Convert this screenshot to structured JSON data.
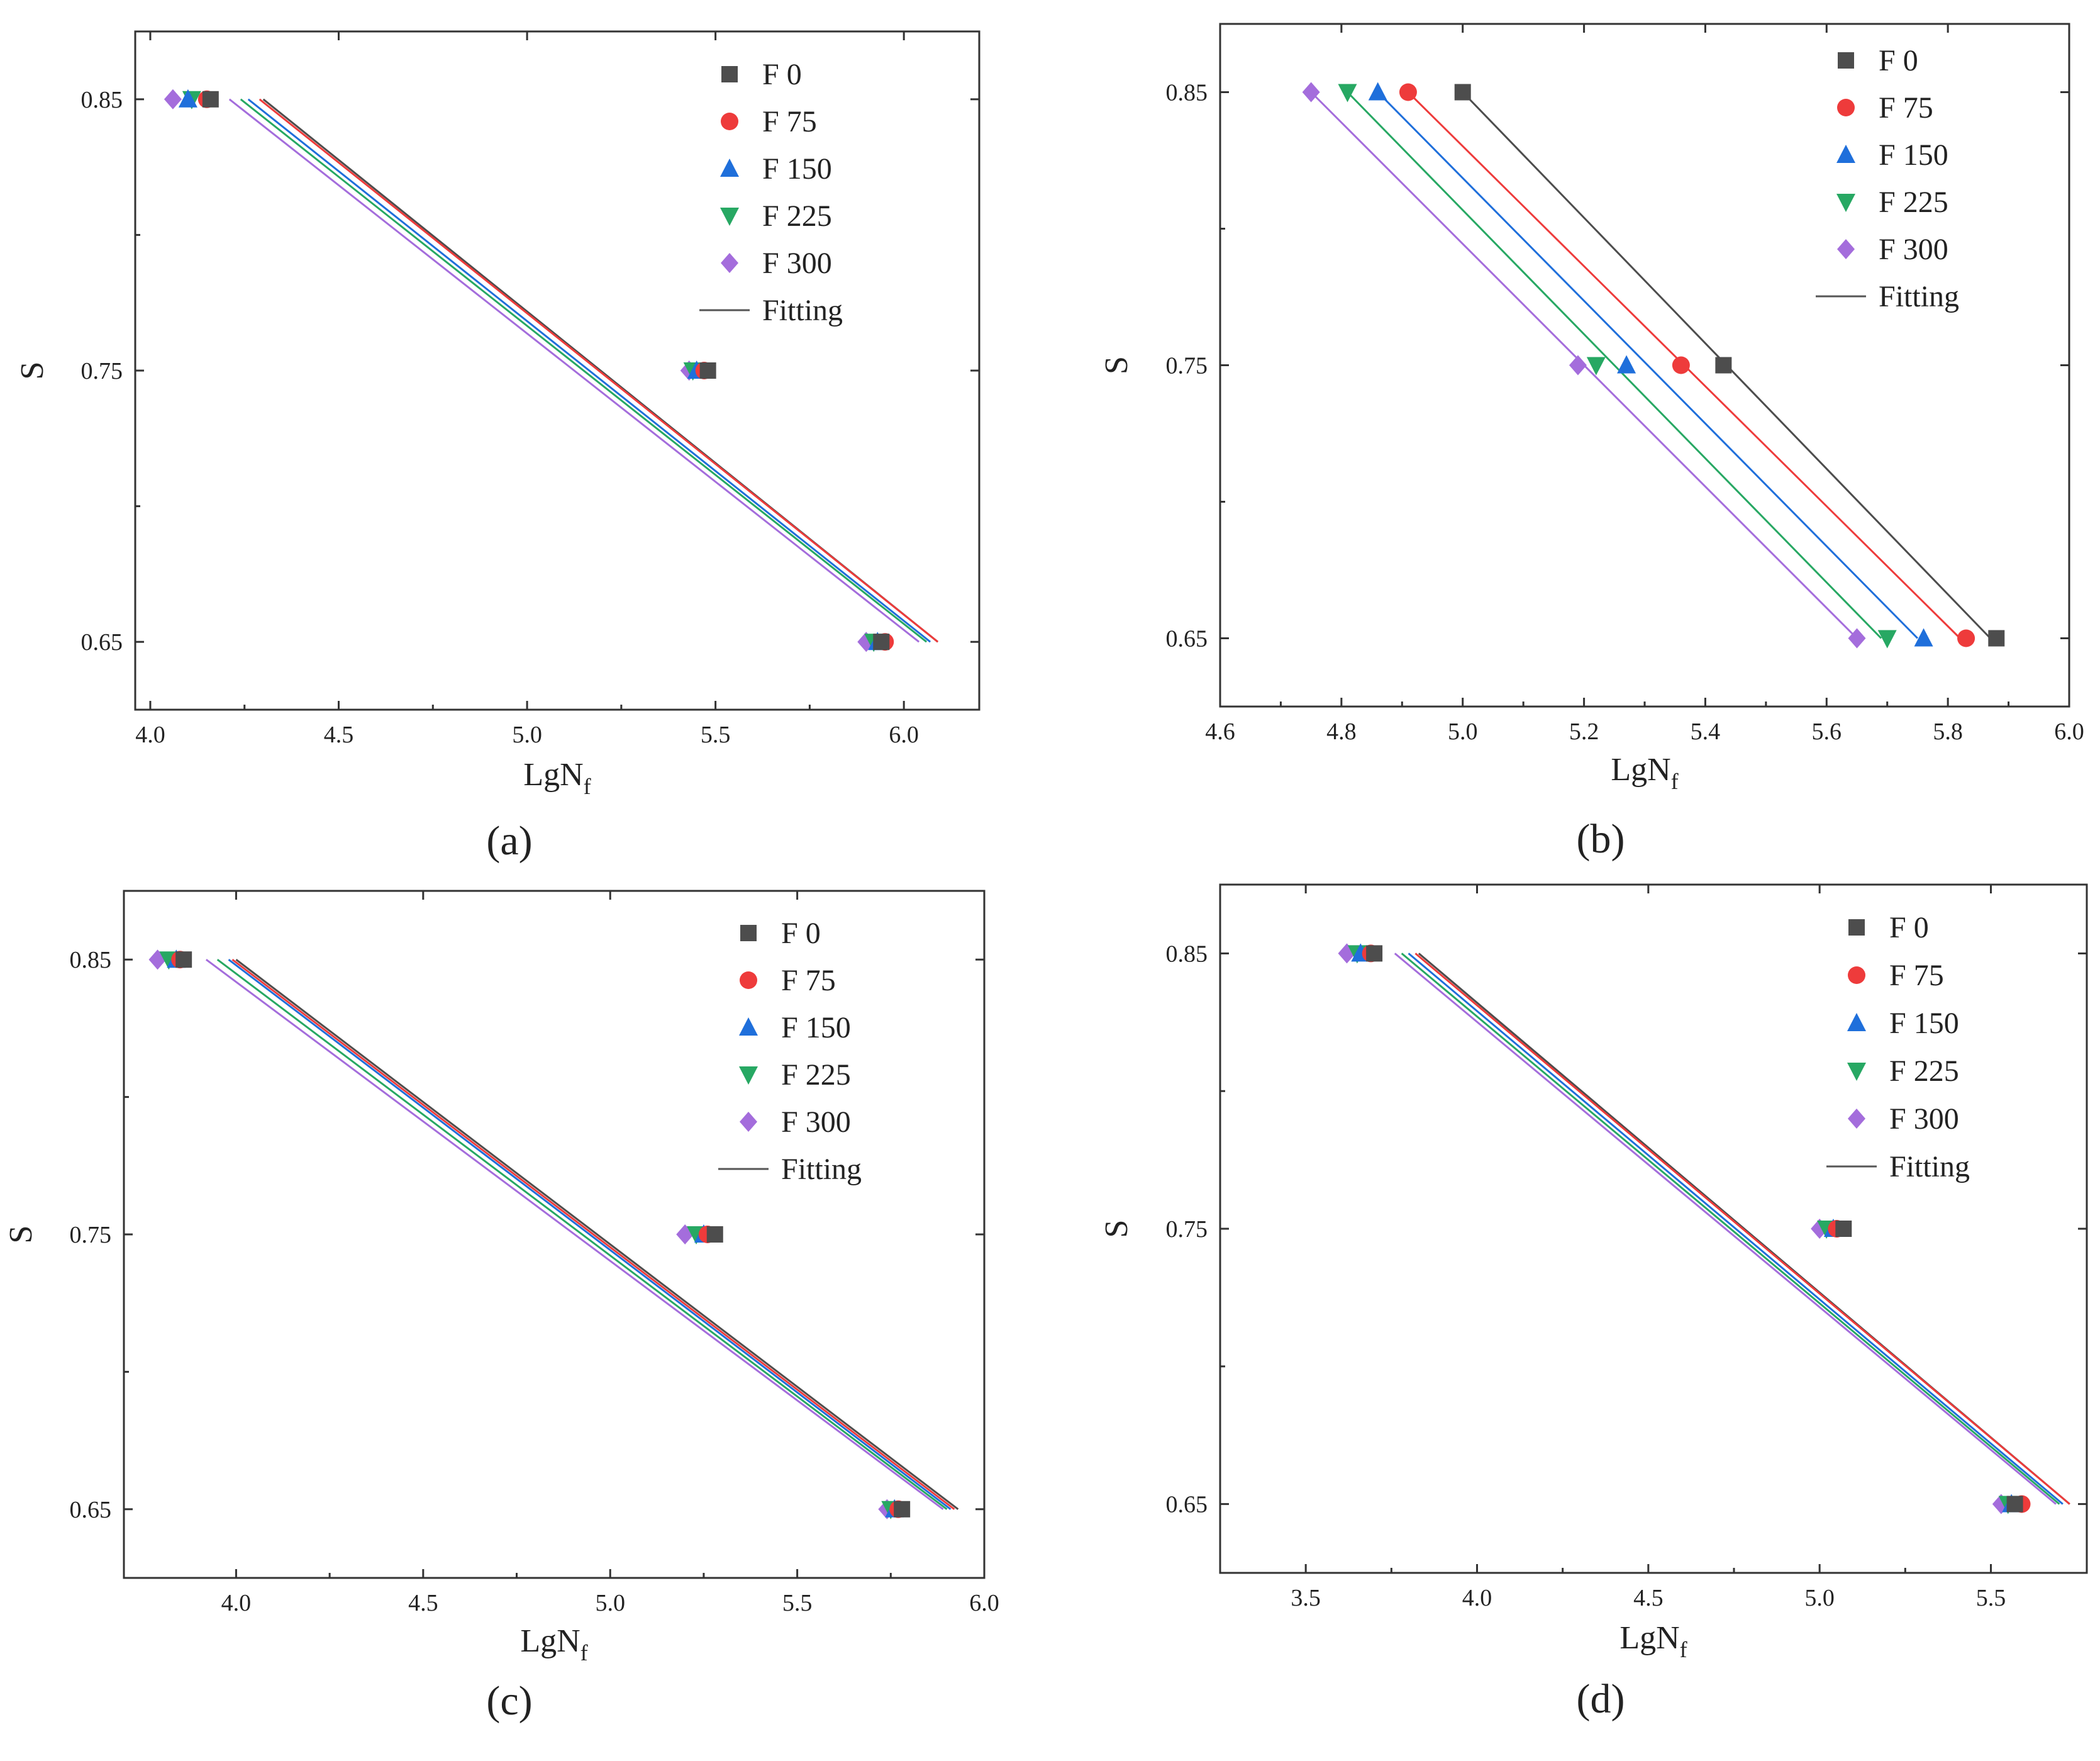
{
  "figure": {
    "colors": {
      "F 0": "#4d4d4d",
      "F 75": "#ee3b3b",
      "F 150": "#1f6fdb",
      "F 225": "#27a863",
      "F 300": "#a46ddc",
      "Fitting": "#555555"
    },
    "markers": {
      "F 0": "square",
      "F 75": "circle",
      "F 150": "triangle-up",
      "F 225": "triangle-down",
      "F 300": "diamond"
    }
  },
  "chart_data": [
    {
      "id": "a",
      "caption": "(a)",
      "type": "scatter",
      "xlabel": "LgN",
      "xlabel_sub": "f",
      "ylabel": "S",
      "xlim": [
        3.96,
        6.2
      ],
      "ylim": [
        0.625,
        0.875
      ],
      "xticks": [
        "4.0",
        "4.5",
        "5.0",
        "5.5",
        "6.0"
      ],
      "yticks": [
        "0.65",
        "0.75",
        "0.85"
      ],
      "legend": [
        "F 0",
        "F 75",
        "F 150",
        "F 225",
        "F 300",
        "Fitting"
      ],
      "legend_position": "top-right",
      "series": [
        {
          "name": "F 0",
          "points": [
            [
              4.16,
              0.85
            ],
            [
              5.48,
              0.75
            ],
            [
              5.94,
              0.65
            ]
          ],
          "fit": [
            [
              4.3,
              0.85
            ],
            [
              6.09,
              0.65
            ]
          ]
        },
        {
          "name": "F 75",
          "points": [
            [
              4.15,
              0.85
            ],
            [
              5.47,
              0.75
            ],
            [
              5.95,
              0.65
            ]
          ],
          "fit": [
            [
              4.29,
              0.85
            ],
            [
              6.09,
              0.65
            ]
          ]
        },
        {
          "name": "F 150",
          "points": [
            [
              4.1,
              0.85
            ],
            [
              5.45,
              0.75
            ],
            [
              5.93,
              0.65
            ]
          ],
          "fit": [
            [
              4.26,
              0.85
            ],
            [
              6.07,
              0.65
            ]
          ]
        },
        {
          "name": "F 225",
          "points": [
            [
              4.11,
              0.85
            ],
            [
              5.44,
              0.75
            ],
            [
              5.92,
              0.65
            ]
          ],
          "fit": [
            [
              4.24,
              0.85
            ],
            [
              6.06,
              0.65
            ]
          ]
        },
        {
          "name": "F 300",
          "points": [
            [
              4.06,
              0.85
            ],
            [
              5.43,
              0.75
            ],
            [
              5.9,
              0.65
            ]
          ],
          "fit": [
            [
              4.21,
              0.85
            ],
            [
              6.04,
              0.65
            ]
          ]
        }
      ]
    },
    {
      "id": "b",
      "caption": "(b)",
      "type": "scatter",
      "xlabel": "LgN",
      "xlabel_sub": "f",
      "ylabel": "S",
      "xlim": [
        4.6,
        6.0
      ],
      "ylim": [
        0.625,
        0.875
      ],
      "xticks": [
        "4.6",
        "4.8",
        "5.0",
        "5.2",
        "5.4",
        "5.6",
        "5.8",
        "6.0"
      ],
      "yticks": [
        "0.65",
        "0.75",
        "0.85"
      ],
      "legend": [
        "F 0",
        "F 75",
        "F 150",
        "F 225",
        "F 300",
        "Fitting"
      ],
      "legend_position": "top-right",
      "series": [
        {
          "name": "F 0",
          "points": [
            [
              5.0,
              0.85
            ],
            [
              5.43,
              0.75
            ],
            [
              5.88,
              0.65
            ]
          ],
          "fit": [
            [
              5.0,
              0.85
            ],
            [
              5.87,
              0.65
            ]
          ]
        },
        {
          "name": "F 75",
          "points": [
            [
              4.91,
              0.85
            ],
            [
              5.36,
              0.75
            ],
            [
              5.83,
              0.65
            ]
          ],
          "fit": [
            [
              4.91,
              0.85
            ],
            [
              5.82,
              0.65
            ]
          ]
        },
        {
          "name": "F 150",
          "points": [
            [
              4.86,
              0.85
            ],
            [
              5.27,
              0.75
            ],
            [
              5.76,
              0.65
            ]
          ],
          "fit": [
            [
              4.86,
              0.85
            ],
            [
              5.75,
              0.65
            ]
          ]
        },
        {
          "name": "F 225",
          "points": [
            [
              4.81,
              0.85
            ],
            [
              5.22,
              0.75
            ],
            [
              5.7,
              0.65
            ]
          ],
          "fit": [
            [
              4.81,
              0.85
            ],
            [
              5.69,
              0.65
            ]
          ]
        },
        {
          "name": "F 300",
          "points": [
            [
              4.75,
              0.85
            ],
            [
              5.19,
              0.75
            ],
            [
              5.65,
              0.65
            ]
          ],
          "fit": [
            [
              4.75,
              0.85
            ],
            [
              5.65,
              0.65
            ]
          ]
        }
      ]
    },
    {
      "id": "c",
      "caption": "(c)",
      "type": "scatter",
      "xlabel": "LgN",
      "xlabel_sub": "f",
      "ylabel": "S",
      "xlim": [
        3.7,
        6.0
      ],
      "ylim": [
        0.625,
        0.875
      ],
      "xticks": [
        "4.0",
        "4.5",
        "5.0",
        "5.5",
        "6.0"
      ],
      "yticks": [
        "0.65",
        "0.75",
        "0.85"
      ],
      "legend": [
        "F 0",
        "F 75",
        "F 150",
        "F 225",
        "F 300",
        "Fitting"
      ],
      "legend_position": "top-right",
      "series": [
        {
          "name": "F 0",
          "points": [
            [
              3.86,
              0.85
            ],
            [
              5.28,
              0.75
            ],
            [
              5.78,
              0.65
            ]
          ],
          "fit": [
            [
              4.0,
              0.85
            ],
            [
              5.93,
              0.65
            ]
          ]
        },
        {
          "name": "F 75",
          "points": [
            [
              3.85,
              0.85
            ],
            [
              5.26,
              0.75
            ],
            [
              5.77,
              0.65
            ]
          ],
          "fit": [
            [
              3.99,
              0.85
            ],
            [
              5.92,
              0.65
            ]
          ]
        },
        {
          "name": "F 150",
          "points": [
            [
              3.84,
              0.85
            ],
            [
              5.25,
              0.75
            ],
            [
              5.76,
              0.65
            ]
          ],
          "fit": [
            [
              3.98,
              0.85
            ],
            [
              5.91,
              0.65
            ]
          ]
        },
        {
          "name": "F 225",
          "points": [
            [
              3.82,
              0.85
            ],
            [
              5.23,
              0.75
            ],
            [
              5.75,
              0.65
            ]
          ],
          "fit": [
            [
              3.95,
              0.85
            ],
            [
              5.9,
              0.65
            ]
          ]
        },
        {
          "name": "F 300",
          "points": [
            [
              3.79,
              0.85
            ],
            [
              5.2,
              0.75
            ],
            [
              5.74,
              0.65
            ]
          ],
          "fit": [
            [
              3.92,
              0.85
            ],
            [
              5.89,
              0.65
            ]
          ]
        }
      ]
    },
    {
      "id": "d",
      "caption": "(d)",
      "type": "scatter",
      "xlabel": "LgN",
      "xlabel_sub": "f",
      "ylabel": "S",
      "xlim": [
        3.25,
        5.78
      ],
      "ylim": [
        0.625,
        0.875
      ],
      "xticks": [
        "3.5",
        "4.0",
        "4.5",
        "5.0",
        "5.5"
      ],
      "yticks": [
        "0.65",
        "0.75",
        "0.85"
      ],
      "legend": [
        "F 0",
        "F 75",
        "F 150",
        "F 225",
        "F 300",
        "Fitting"
      ],
      "legend_position": "top-right",
      "series": [
        {
          "name": "F 0",
          "points": [
            [
              3.7,
              0.85
            ],
            [
              5.07,
              0.75
            ],
            [
              5.57,
              0.65
            ]
          ],
          "fit": [
            [
              3.83,
              0.85
            ],
            [
              5.73,
              0.65
            ]
          ]
        },
        {
          "name": "F 75",
          "points": [
            [
              3.69,
              0.85
            ],
            [
              5.05,
              0.75
            ],
            [
              5.59,
              0.65
            ]
          ],
          "fit": [
            [
              3.82,
              0.85
            ],
            [
              5.73,
              0.65
            ]
          ]
        },
        {
          "name": "F 150",
          "points": [
            [
              3.66,
              0.85
            ],
            [
              5.04,
              0.75
            ],
            [
              5.56,
              0.65
            ]
          ],
          "fit": [
            [
              3.8,
              0.85
            ],
            [
              5.71,
              0.65
            ]
          ]
        },
        {
          "name": "F 225",
          "points": [
            [
              3.65,
              0.85
            ],
            [
              5.02,
              0.75
            ],
            [
              5.55,
              0.65
            ]
          ],
          "fit": [
            [
              3.78,
              0.85
            ],
            [
              5.7,
              0.65
            ]
          ]
        },
        {
          "name": "F 300",
          "points": [
            [
              3.62,
              0.85
            ],
            [
              5.0,
              0.75
            ],
            [
              5.53,
              0.65
            ]
          ],
          "fit": [
            [
              3.76,
              0.85
            ],
            [
              5.69,
              0.65
            ]
          ]
        }
      ]
    }
  ]
}
